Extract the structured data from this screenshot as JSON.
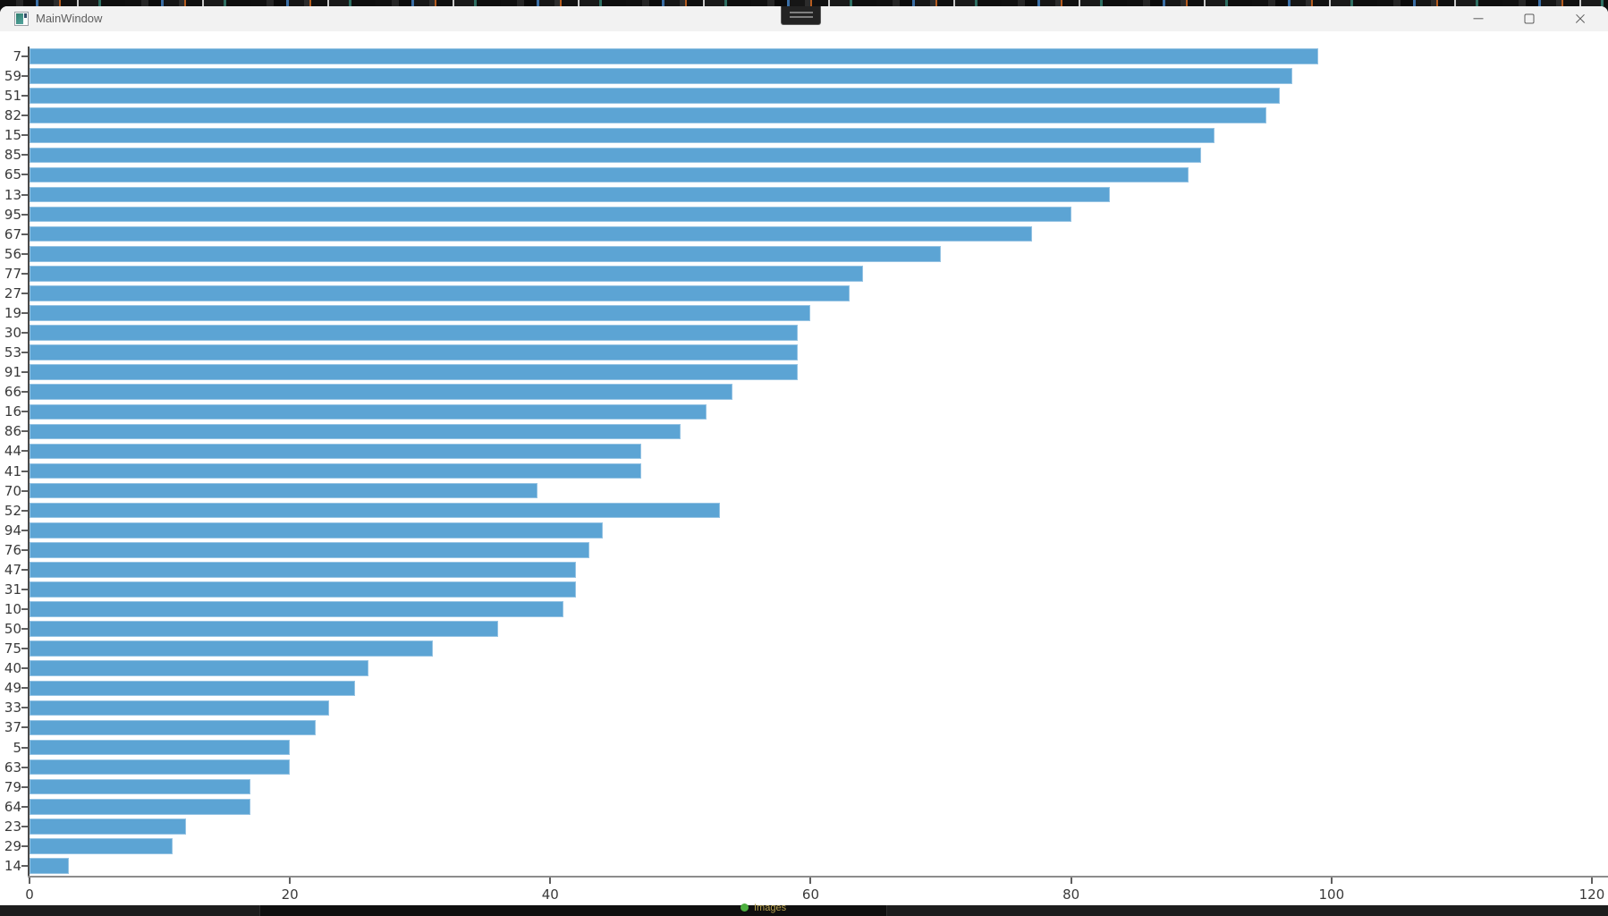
{
  "window": {
    "title": "MainWindow",
    "icon": "app-window-icon",
    "controls": [
      {
        "name": "minimize",
        "icon": "minimize-line"
      },
      {
        "name": "maximize",
        "icon": "maximize-square"
      },
      {
        "name": "close",
        "icon": "close-x"
      }
    ]
  },
  "share_overlay": {
    "grip_icon": "drag-grip-lines",
    "taskbar_text": "Images",
    "status_dot_color": "#4caf3f"
  },
  "chart_data": {
    "type": "bar",
    "orientation": "horizontal",
    "title": "",
    "xlabel": "",
    "ylabel": "",
    "grid": false,
    "bar_color": "#5ca4d4",
    "categories": [
      "7",
      "59",
      "51",
      "82",
      "15",
      "85",
      "65",
      "13",
      "95",
      "67",
      "56",
      "77",
      "27",
      "19",
      "30",
      "53",
      "91",
      "66",
      "16",
      "86",
      "44",
      "41",
      "70",
      "52",
      "94",
      "76",
      "47",
      "31",
      "10",
      "50",
      "75",
      "40",
      "49",
      "33",
      "37",
      "5",
      "63",
      "79",
      "64",
      "23",
      "29",
      "14"
    ],
    "values": [
      99,
      97,
      96,
      95,
      91,
      90,
      89,
      83,
      80,
      77,
      70,
      64,
      63,
      60,
      59,
      59,
      59,
      54,
      52,
      50,
      47,
      47,
      39,
      53,
      44,
      43,
      42,
      42,
      41,
      36,
      31,
      26,
      25,
      23,
      22,
      20,
      20,
      17,
      17,
      12,
      11,
      3
    ],
    "x_ticks": [
      0,
      20,
      40,
      60,
      80,
      100,
      120
    ],
    "xlim": [
      0,
      121.3
    ]
  }
}
